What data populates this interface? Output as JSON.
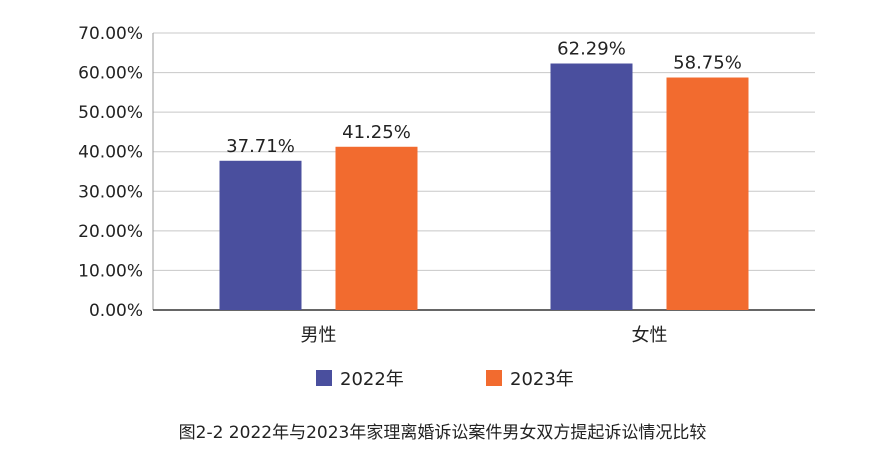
{
  "chart_data": {
    "type": "bar",
    "title": "",
    "xlabel": "",
    "ylabel": "",
    "categories": [
      "男性",
      "女性"
    ],
    "series": [
      {
        "name": "2022年",
        "color": "#4a4f9e",
        "values": [
          37.71,
          62.29
        ],
        "labels": [
          "37.71%",
          "62.29%"
        ]
      },
      {
        "name": "2023年",
        "color": "#f26b2f",
        "values": [
          41.25,
          58.75
        ],
        "labels": [
          "41.25%",
          "58.75%"
        ]
      }
    ],
    "ylim": [
      0,
      70
    ],
    "yticks": [
      0,
      10,
      20,
      30,
      40,
      50,
      60,
      70
    ],
    "ytick_labels": [
      "0.00%",
      "10.00%",
      "20.00%",
      "30.00%",
      "40.00%",
      "50.00%",
      "60.00%",
      "70.00%"
    ],
    "grid": true,
    "legend": "bottom"
  },
  "caption": "图2-2  2022年与2023年家理离婚诉讼案件男女双方提起诉讼情况比较"
}
